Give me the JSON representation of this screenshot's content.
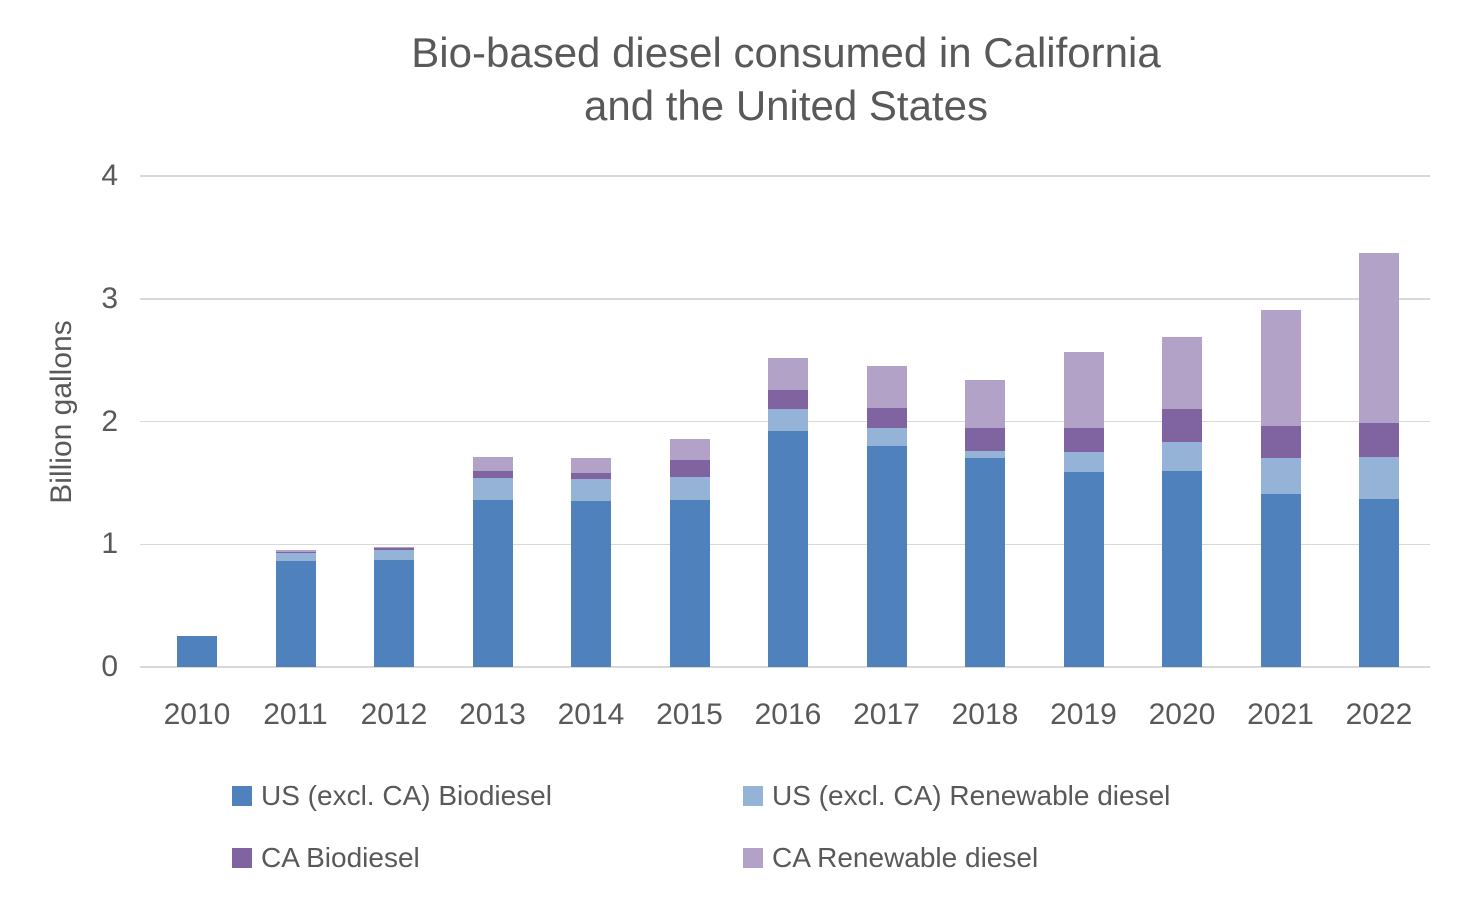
{
  "title": {
    "line1": "Bio-based diesel consumed in California",
    "line2": "and the United States"
  },
  "colors": {
    "text": "#595959",
    "gridline": "#D9D9D9",
    "background": "#FFFFFF"
  },
  "chart_data": {
    "type": "bar",
    "stacked": true,
    "title": "Bio-based diesel consumed in California and the United States",
    "xlabel": "",
    "ylabel": "Billion gallons",
    "ylim": [
      0,
      4
    ],
    "yticks": [
      "0",
      "1",
      "2",
      "3",
      "4"
    ],
    "grid": true,
    "legend_position": "bottom",
    "categories": [
      "2010",
      "2011",
      "2012",
      "2013",
      "2014",
      "2015",
      "2016",
      "2017",
      "2018",
      "2019",
      "2020",
      "2021",
      "2022"
    ],
    "series": [
      {
        "name": "US (excl. CA) Biodiesel",
        "color": "#4F81BD",
        "values": [
          0.25,
          0.86,
          0.87,
          1.36,
          1.35,
          1.36,
          1.92,
          1.8,
          1.7,
          1.59,
          1.6,
          1.41,
          1.37
        ]
      },
      {
        "name": "US (excl. CA) Renewable diesel",
        "color": "#95B3D7",
        "values": [
          0,
          0.07,
          0.08,
          0.18,
          0.18,
          0.19,
          0.18,
          0.15,
          0.06,
          0.16,
          0.23,
          0.29,
          0.34
        ]
      },
      {
        "name": "CA Biodiesel",
        "color": "#8064A2",
        "values": [
          0,
          0.01,
          0.02,
          0.06,
          0.05,
          0.14,
          0.16,
          0.16,
          0.19,
          0.2,
          0.27,
          0.26,
          0.28
        ]
      },
      {
        "name": "CA Renewable diesel",
        "color": "#B3A2C7",
        "values": [
          0,
          0.01,
          0.01,
          0.11,
          0.12,
          0.17,
          0.26,
          0.34,
          0.39,
          0.62,
          0.59,
          0.95,
          1.38
        ]
      }
    ]
  }
}
